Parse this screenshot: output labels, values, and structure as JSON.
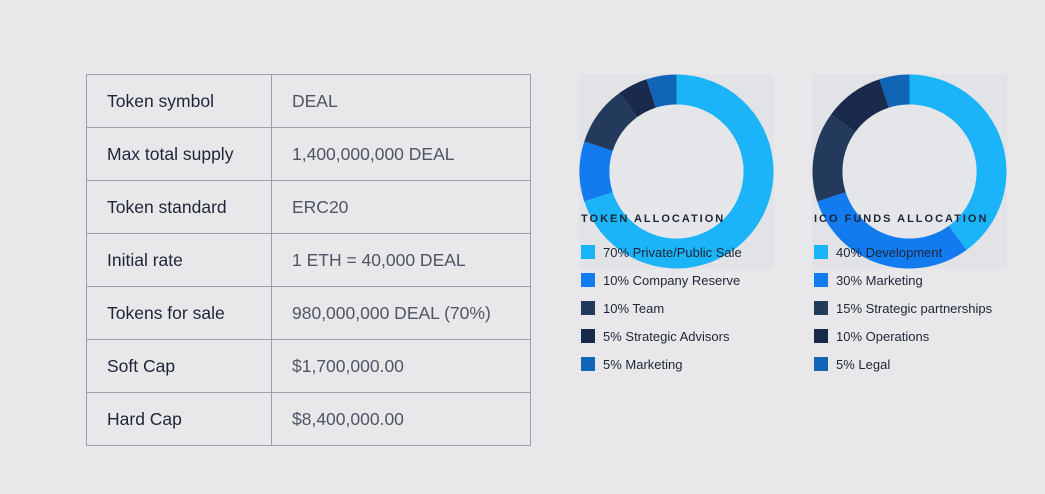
{
  "token_info": [
    {
      "key": "Token symbol",
      "value": "DEAL"
    },
    {
      "key": "Max total supply",
      "value": "1,400,000,000 DEAL"
    },
    {
      "key": "Token standard",
      "value": "ERC20"
    },
    {
      "key": "Initial rate",
      "value": "1 ETH = 40,000 DEAL"
    },
    {
      "key": "Tokens for sale",
      "value": "980,000,000 DEAL (70%)"
    },
    {
      "key": "Soft Cap",
      "value": "$1,700,000.00"
    },
    {
      "key": "Hard Cap",
      "value": "$8,400,000.00"
    }
  ],
  "chart_data": [
    {
      "type": "pie",
      "title": "TOKEN ALLOCATION",
      "donut": true,
      "legend_position": "below",
      "categories": [
        "Private/Public Sale",
        "Company Reserve",
        "Team",
        "Strategic Advisors",
        "Marketing"
      ],
      "values": [
        70,
        10,
        10,
        5,
        5
      ],
      "legend_labels": [
        "70% Private/Public Sale",
        "10% Company Reserve",
        "10% Team",
        "5% Strategic Advisors",
        "5% Marketing"
      ],
      "colors": [
        "#1cb4f9",
        "#137bf0",
        "#233a5c",
        "#1a2a4d",
        "#1165b6"
      ]
    },
    {
      "type": "pie",
      "title": "ICO FUNDS ALLOCATION",
      "donut": true,
      "legend_position": "below",
      "categories": [
        "Development",
        "Marketing",
        "Strategic partnerships",
        "Operations",
        "Legal"
      ],
      "values": [
        40,
        30,
        15,
        10,
        5
      ],
      "legend_labels": [
        "40% Development",
        "30% Marketing",
        "15% Strategic partnerships",
        "10% Operations",
        "5% Legal"
      ],
      "colors": [
        "#1cb4f9",
        "#137bf0",
        "#233a5c",
        "#1a2a4d",
        "#1165b6"
      ]
    }
  ]
}
